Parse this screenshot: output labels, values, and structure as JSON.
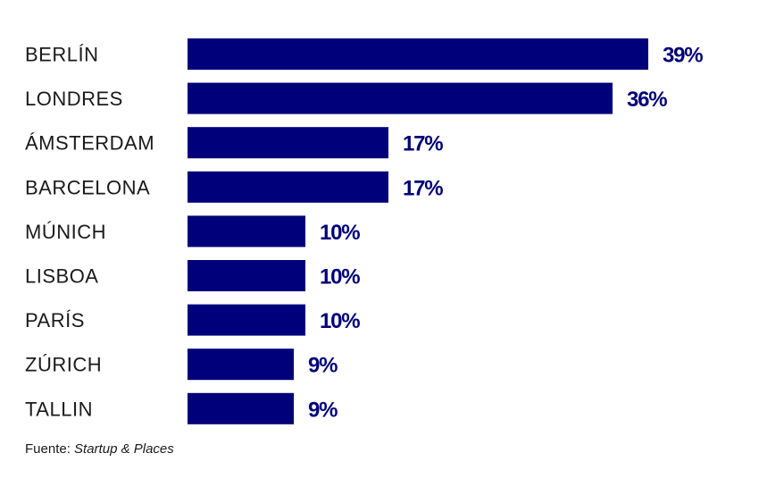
{
  "chart_data": {
    "type": "bar",
    "orientation": "horizontal",
    "categories": [
      "BERLÍN",
      "LONDRES",
      "ÁMSTERDAM",
      "BARCELONA",
      "MÚNICH",
      "LISBOA",
      "PARÍS",
      "ZÚRICH",
      "TALLIN"
    ],
    "values": [
      39,
      36,
      17,
      17,
      10,
      10,
      10,
      9,
      9
    ],
    "value_labels": [
      "39%",
      "36%",
      "17%",
      "17%",
      "10%",
      "10%",
      "10%",
      "9%",
      "9%"
    ],
    "unit": "%",
    "xlim": [
      0,
      39
    ],
    "grid": false,
    "legend": "none",
    "bar_color": "#00007a"
  },
  "source": {
    "prefix": "Fuente:",
    "name": "Startup & Places"
  }
}
